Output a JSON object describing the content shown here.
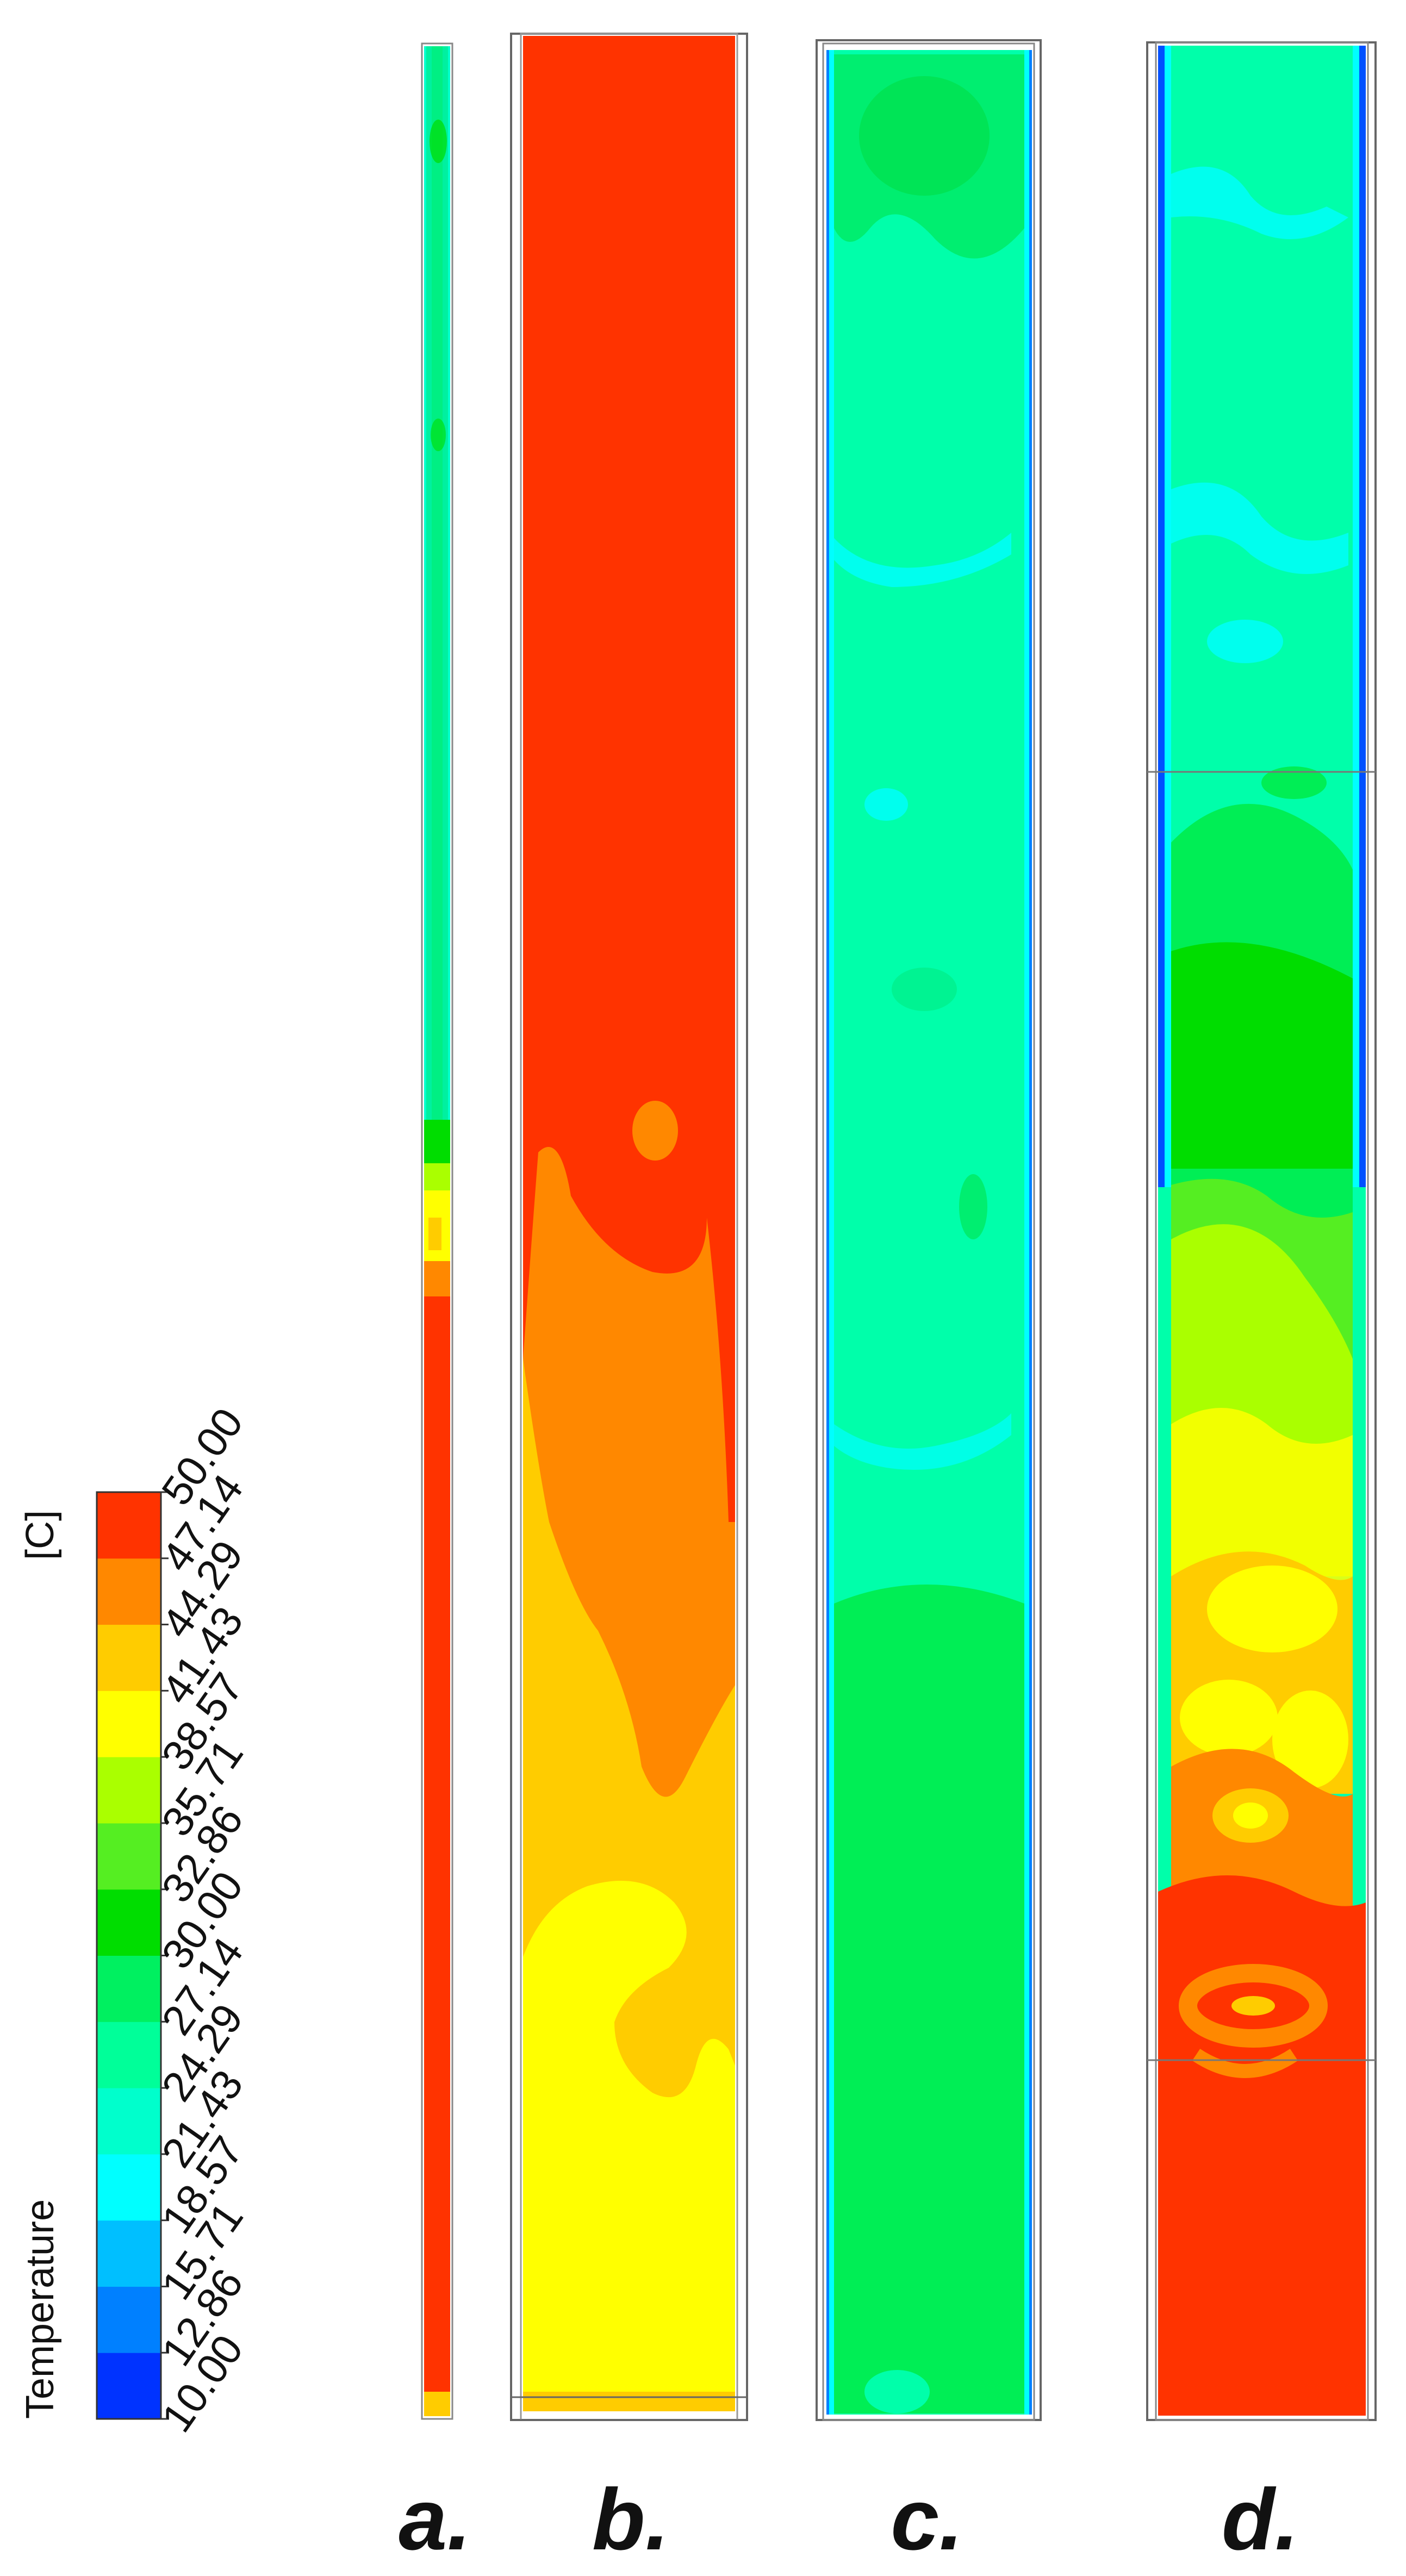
{
  "legend": {
    "title": "Temperature",
    "unit": "[C]",
    "ticks": [
      "10.00",
      "12.86",
      "15.71",
      "18.57",
      "21.43",
      "24.29",
      "27.14",
      "30.00",
      "32.86",
      "35.71",
      "38.57",
      "41.43",
      "44.29",
      "47.14",
      "50.00"
    ],
    "colors": [
      "#0033ff",
      "#0080ff",
      "#00bfff",
      "#00ffff",
      "#00ffcc",
      "#00ff99",
      "#00f060",
      "#00dd00",
      "#55ee22",
      "#aaff00",
      "#ffff00",
      "#ffcc00",
      "#ff8800",
      "#ff3300"
    ]
  },
  "panels": [
    {
      "label": "a."
    },
    {
      "label": "b."
    },
    {
      "label": "c."
    },
    {
      "label": "d."
    }
  ]
}
